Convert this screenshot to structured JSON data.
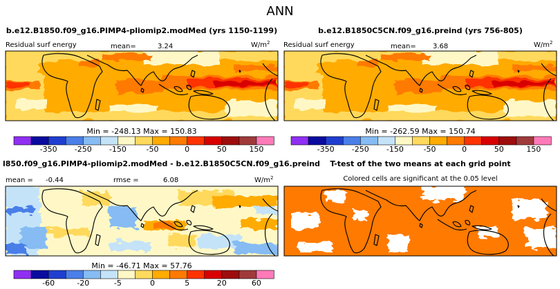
{
  "figure": {
    "title": "ANN"
  },
  "units_label": "W/m",
  "units_sup": "2",
  "panels": [
    {
      "id": "p1",
      "title": "b.e12.B1850.f09_g16.PIMP4-pliomip2.modMed (yrs 1150-1199)",
      "left_label": "Residual surf energy",
      "mean_label": "mean=",
      "mean_value": "3.24",
      "min_label": "Min =",
      "min_value": "-248.13",
      "max_label": "Max =",
      "max_value": "150.83"
    },
    {
      "id": "p2",
      "title": "b.e12.B1850C5CN.f09_g16.preind (yrs 756-805)",
      "left_label": "Residual surf energy",
      "mean_label": "mean=",
      "mean_value": "3.68",
      "min_label": "Min =",
      "min_value": "-262.59",
      "max_label": "Max =",
      "max_value": "150.74"
    },
    {
      "id": "p3",
      "title": "l850.f09_g16.PIMP4-pliomip2.modMed - b.e12.B1850C5CN.f09_g16.preind",
      "mean_label": "mean =",
      "mean_value": "-0.44",
      "rmse_label": "rmse =",
      "rmse_value": "6.08",
      "min_label": "Min =",
      "min_value": "-46.71",
      "max_label": "Max =",
      "max_value": "57.76"
    },
    {
      "id": "p4",
      "title": "T-test of the two means at each grid point",
      "subtitle": "Colored cells are significant at the 0.05 level"
    }
  ],
  "colorbars": {
    "absolute": {
      "colors": [
        "#8f2ff2",
        "#0a0a9e",
        "#1f3ecf",
        "#4a7ee8",
        "#86bcf3",
        "#c4e3f8",
        "#fff8c6",
        "#ffd95c",
        "#ffab00",
        "#ff7a00",
        "#ff3300",
        "#d80000",
        "#9e0d0d",
        "#a03a3a",
        "#ff7ab8"
      ],
      "tick_labels": [
        "-350",
        "-250",
        "-150",
        "-50",
        "0",
        "50",
        "150"
      ]
    },
    "difference": {
      "colors": [
        "#8f2ff2",
        "#0a0a9e",
        "#1f3ecf",
        "#4a7ee8",
        "#86bcf3",
        "#c4e3f8",
        "#fff8c6",
        "#ffd95c",
        "#ffab00",
        "#ff7a00",
        "#ff3300",
        "#d80000",
        "#9e0d0d",
        "#a03a3a",
        "#ff7ab8"
      ],
      "tick_labels": [
        "-60",
        "-20",
        "-5",
        "0",
        "5",
        "20",
        "60"
      ]
    }
  },
  "chart_data": [
    {
      "type": "heatmap",
      "title": "b.e12.B1850.f09_g16.PIMP4-pliomip2.modMed (yrs 1150-1199)",
      "variable": "Residual surf energy",
      "units": "W/m2",
      "mean": 3.24,
      "min": -248.13,
      "max": 150.83,
      "colorbar_ticks": [
        -350,
        -250,
        -150,
        -50,
        0,
        50,
        150
      ]
    },
    {
      "type": "heatmap",
      "title": "b.e12.B1850C5CN.f09_g16.preind (yrs 756-805)",
      "variable": "Residual surf energy",
      "units": "W/m2",
      "mean": 3.68,
      "min": -262.59,
      "max": 150.74,
      "colorbar_ticks": [
        -350,
        -250,
        -150,
        -50,
        0,
        50,
        150
      ]
    },
    {
      "type": "heatmap",
      "title": "l850.f09_g16.PIMP4-pliomip2.modMed - b.e12.B1850C5CN.f09_g16.preind",
      "units": "W/m2",
      "mean": -0.44,
      "rmse": 6.08,
      "min": -46.71,
      "max": 57.76,
      "colorbar_ticks": [
        -60,
        -20,
        -5,
        0,
        5,
        20,
        60
      ]
    },
    {
      "type": "heatmap",
      "title": "T-test of the two means at each grid point",
      "subtitle": "Colored cells are significant at the 0.05 level"
    }
  ]
}
